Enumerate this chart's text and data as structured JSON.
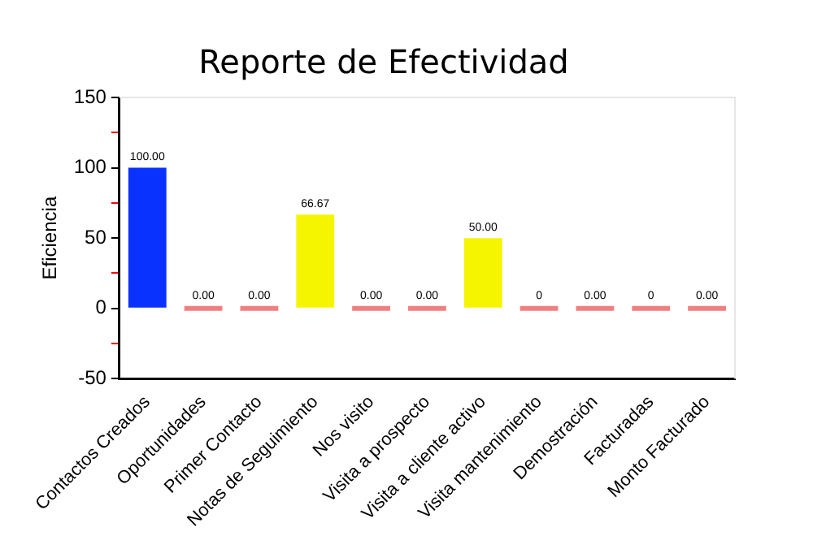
{
  "chart_data": {
    "type": "bar",
    "title": "Reporte de Efectividad",
    "ylabel": "Eficiencia",
    "categories": [
      "Contactos Creados",
      "Oportunidades",
      "Primer Contacto",
      "Notas de Seguimiento",
      "Nos visito",
      "Visita a prospecto",
      "Visita a cliente activo",
      "Visita mantenimiento",
      "Demostración",
      "Facturadas",
      "Monto Facturado"
    ],
    "values": [
      100,
      0,
      0,
      66.67,
      0,
      0,
      50,
      0,
      0,
      0,
      0
    ],
    "value_labels": [
      "100.00",
      "0.00",
      "0.00",
      "66.67",
      "0.00",
      "0.00",
      "50.00",
      "0",
      "0.00",
      "0",
      "0.00"
    ],
    "colors": [
      "#0a32ff",
      "#f08080",
      "#f08080",
      "#f5f500",
      "#f08080",
      "#f08080",
      "#f5f500",
      "#f08080",
      "#f08080",
      "#f08080",
      "#f08080"
    ],
    "ylim": [
      -50,
      150
    ],
    "yticks": [
      -50,
      {
        "value": -25,
        "label": null
      },
      0,
      {
        "value": 25,
        "label": null
      },
      50,
      {
        "value": 75,
        "label": null
      },
      100,
      {
        "value": 125,
        "label": null
      },
      150
    ],
    "grid": false,
    "legend": false
  }
}
